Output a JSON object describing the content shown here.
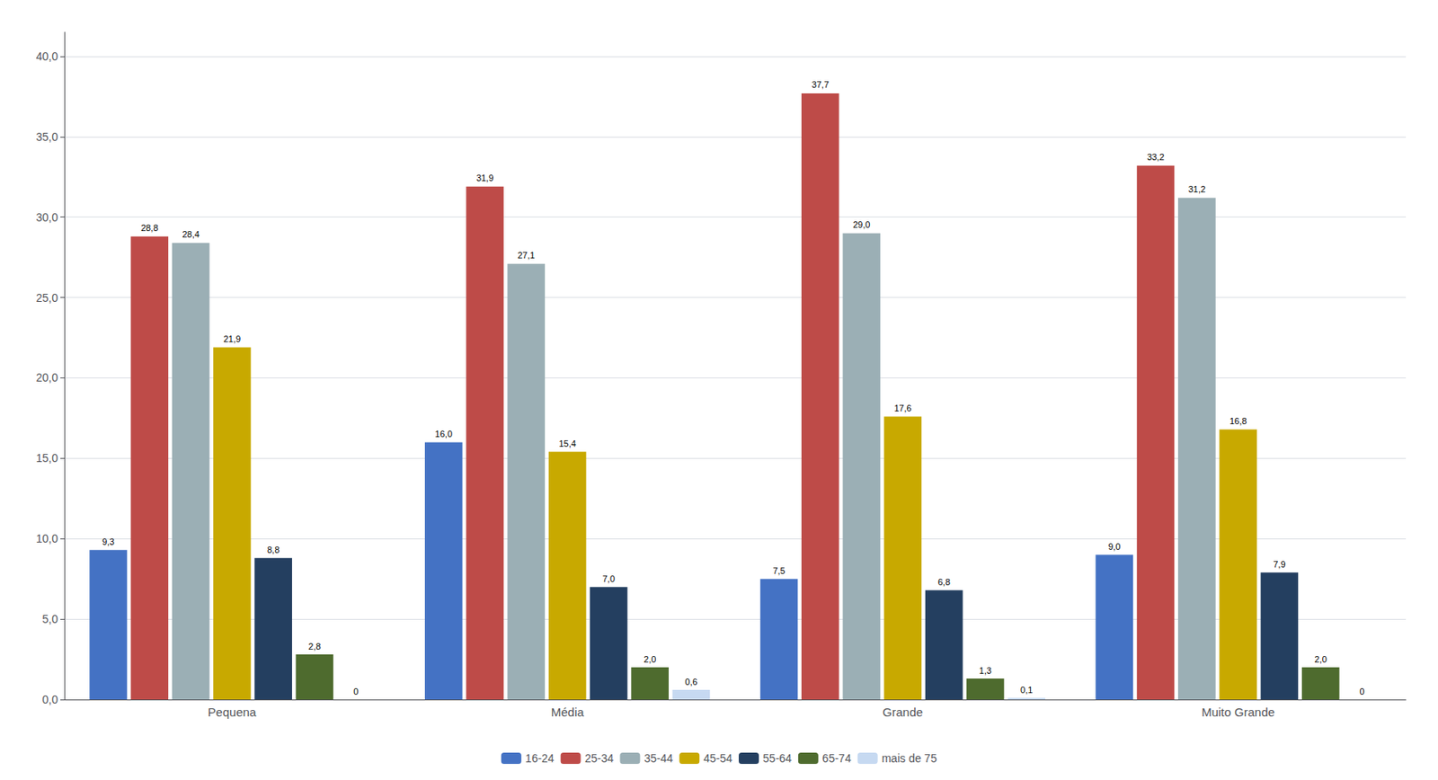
{
  "chart_data": {
    "type": "bar",
    "categories": [
      "Pequena",
      "Média",
      "Grande",
      "Muito Grande"
    ],
    "series": [
      {
        "name": "16-24",
        "color": "#4472C4",
        "values": [
          9.3,
          16.0,
          7.5,
          9.0
        ],
        "value_labels": [
          "9,3",
          "16,0",
          "7,5",
          "9,0"
        ]
      },
      {
        "name": "25-34",
        "color": "#BE4B48",
        "values": [
          28.8,
          31.9,
          37.7,
          33.2
        ],
        "value_labels": [
          "28,8",
          "31,9",
          "37,7",
          "33,2"
        ]
      },
      {
        "name": "35-44",
        "color": "#9BAFB5",
        "values": [
          28.4,
          27.1,
          29.0,
          31.2
        ],
        "value_labels": [
          "28,4",
          "27,1",
          "29,0",
          "31,2"
        ]
      },
      {
        "name": "45-54",
        "color": "#C8A900",
        "values": [
          21.9,
          15.4,
          17.6,
          16.8
        ],
        "value_labels": [
          "21,9",
          "15,4",
          "17,6",
          "16,8"
        ]
      },
      {
        "name": "55-64",
        "color": "#243F60",
        "values": [
          8.8,
          7.0,
          6.8,
          7.9
        ],
        "value_labels": [
          "8,8",
          "7,0",
          "6,8",
          "7,9"
        ]
      },
      {
        "name": "65-74",
        "color": "#4E6B2E",
        "values": [
          2.8,
          2.0,
          1.3,
          2.0
        ],
        "value_labels": [
          "2,8",
          "2,0",
          "1,3",
          "2,0"
        ]
      },
      {
        "name": "mais de 75",
        "color": "#C6D9F1",
        "values": [
          0.0,
          0.6,
          0.1,
          0.0
        ],
        "value_labels": [
          "0",
          "0,6",
          "0,1",
          "0"
        ]
      }
    ],
    "ylim": [
      0,
      41.5
    ],
    "yticks": [
      {
        "value": 0.0,
        "label": "0,0"
      },
      {
        "value": 5.0,
        "label": "5,0"
      },
      {
        "value": 10.0,
        "label": "10,0"
      },
      {
        "value": 15.0,
        "label": "15,0"
      },
      {
        "value": 20.0,
        "label": "20,0"
      },
      {
        "value": 25.0,
        "label": "25,0"
      },
      {
        "value": 30.0,
        "label": "30,0"
      },
      {
        "value": 35.0,
        "label": "35,0"
      },
      {
        "value": 40.0,
        "label": "40,0"
      }
    ],
    "grid": true,
    "legend": "bottom",
    "data_labels": true
  }
}
